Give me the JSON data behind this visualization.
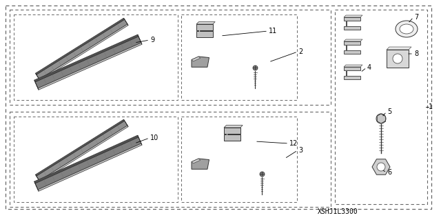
{
  "background_color": "#ffffff",
  "line_color": "#333333",
  "dash_color": "#666666",
  "title_code": "XSHJ1L3300",
  "font_size_label": 7,
  "font_size_code": 7,
  "dash_pattern": [
    3,
    2
  ]
}
